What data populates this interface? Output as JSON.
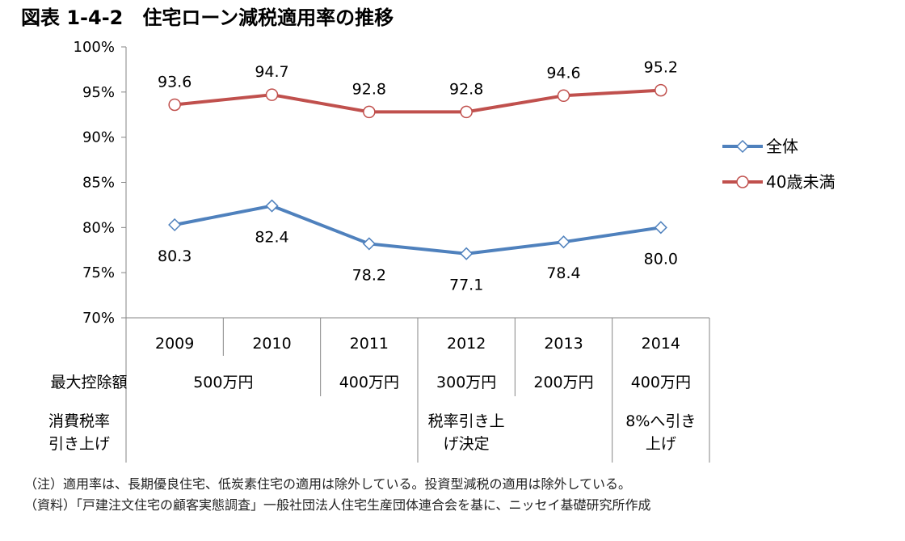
{
  "chart_data": {
    "type": "line",
    "title": "図表 1-4-2　住宅ローン減税適用率の推移",
    "categories": [
      "2009",
      "2010",
      "2011",
      "2012",
      "2013",
      "2014"
    ],
    "ylim": [
      70,
      100
    ],
    "yticks": [
      "70%",
      "75%",
      "80%",
      "85%",
      "90%",
      "95%",
      "100%"
    ],
    "ytick_values": [
      70,
      75,
      80,
      85,
      90,
      95,
      100
    ],
    "series": [
      {
        "name": "全体",
        "values": [
          80.3,
          82.4,
          78.2,
          77.1,
          78.4,
          80.0
        ],
        "labels": [
          "80.3",
          "82.4",
          "78.2",
          "77.1",
          "78.4",
          "80.0"
        ],
        "color": "#4f81bd",
        "marker": "diamond"
      },
      {
        "name": "40歳未満",
        "values": [
          93.6,
          94.7,
          92.8,
          92.8,
          94.6,
          95.2
        ],
        "labels": [
          "93.6",
          "94.7",
          "92.8",
          "92.8",
          "94.6",
          "95.2"
        ],
        "color": "#c0504d",
        "marker": "circle"
      }
    ],
    "legend_position": "right",
    "table": {
      "row1_header": "最大控除額",
      "row1_cells": [
        {
          "text": "500万円",
          "span": [
            0,
            1
          ]
        },
        {
          "text": "400万円",
          "span": [
            2,
            2
          ]
        },
        {
          "text": "300万円",
          "span": [
            3,
            3
          ]
        },
        {
          "text": "200万円",
          "span": [
            4,
            4
          ]
        },
        {
          "text": "400万円",
          "span": [
            5,
            5
          ]
        }
      ],
      "row2_header": [
        "消費税率",
        "引き上げ"
      ],
      "row2_cells": [
        {
          "col": 3,
          "lines": [
            "税率引き上",
            "げ決定"
          ]
        },
        {
          "col": 5,
          "lines": [
            "8%へ引き",
            "上げ"
          ]
        }
      ]
    },
    "notes": [
      "（注）適用率は、長期優良住宅、低炭素住宅の適用は除外している。投資型減税の適用は除外している。",
      "（資料）「戸建注文住宅の顧客実態調査」一般社団法人住宅生産団体連合会を基に、ニッセイ基礎研究所作成"
    ]
  }
}
